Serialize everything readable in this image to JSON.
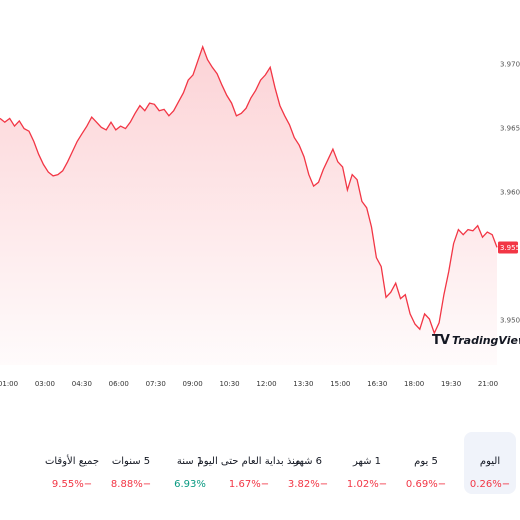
{
  "chart_data": {
    "type": "area",
    "color": "#f23645",
    "x_ticks": [
      "01:00",
      "03:00",
      "04:30",
      "06:00",
      "07:30",
      "09:00",
      "10:30",
      "12:00",
      "13:30",
      "15:00",
      "16:30",
      "18:00",
      "19:30",
      "21:00"
    ],
    "y_ticks": [
      "3.9700",
      "3.9650",
      "3.9600",
      "3.9500"
    ],
    "last_price": "3.9557",
    "ylim": [
      3.9465,
      3.9735
    ],
    "series": [
      {
        "values": [
          3.9658,
          3.9655,
          3.9658,
          3.9652,
          3.9656,
          3.965,
          3.9648,
          3.964,
          3.963,
          3.9622,
          3.9616,
          3.9613,
          3.9614,
          3.9617,
          3.9624,
          3.9632,
          3.964,
          3.9646,
          3.9652,
          3.9659,
          3.9655,
          3.9651,
          3.9649,
          3.9655,
          3.9649,
          3.9652,
          3.965,
          3.9655,
          3.9662,
          3.9668,
          3.9664,
          3.967,
          3.9669,
          3.9664,
          3.9665,
          3.966,
          3.9664,
          3.9671,
          3.9678,
          3.9688,
          3.9692,
          3.9703,
          3.9714,
          3.9704,
          3.9698,
          3.9693,
          3.9684,
          3.9676,
          3.967,
          3.966,
          3.9662,
          3.9666,
          3.9674,
          3.968,
          3.9688,
          3.9692,
          3.9698,
          3.9682,
          3.9668,
          3.966,
          3.9653,
          3.9643,
          3.9637,
          3.9628,
          3.9614,
          3.9605,
          3.9608,
          3.9618,
          3.9626,
          3.9634,
          3.9624,
          3.962,
          3.9602,
          3.9614,
          3.961,
          3.9593,
          3.9588,
          3.9573,
          3.9549,
          3.9542,
          3.9518,
          3.9522,
          3.9529,
          3.9517,
          3.952,
          3.9505,
          3.9497,
          3.9493,
          3.9505,
          3.9501,
          3.949,
          3.9498,
          3.952,
          3.9538,
          3.956,
          3.9571,
          3.9567,
          3.9571,
          3.957,
          3.9574,
          3.9565,
          3.9569,
          3.9567,
          3.9557
        ]
      }
    ]
  },
  "logo": {
    "mark": "TV",
    "text": "TradingView"
  },
  "periods": [
    {
      "label": "اليوم",
      "value": "0.26%−",
      "sign": "neg",
      "active": true
    },
    {
      "label": "5 يوم",
      "value": "0.69%−",
      "sign": "neg",
      "active": false
    },
    {
      "label": "1 شهر",
      "value": "1.02%−",
      "sign": "neg",
      "active": false
    },
    {
      "label": "6 شهر",
      "value": "3.82%−",
      "sign": "neg",
      "active": false
    },
    {
      "label": "منذ بداية العام حتى اليوم",
      "value": "1.67%−",
      "sign": "neg",
      "active": false
    },
    {
      "label": "1 سنة",
      "value": "6.93%",
      "sign": "pos",
      "active": false
    },
    {
      "label": "5 سنوات",
      "value": "8.88%−",
      "sign": "neg",
      "active": false
    },
    {
      "label": "جميع الأوقات",
      "value": "9.55%−",
      "sign": "neg",
      "active": false
    }
  ]
}
